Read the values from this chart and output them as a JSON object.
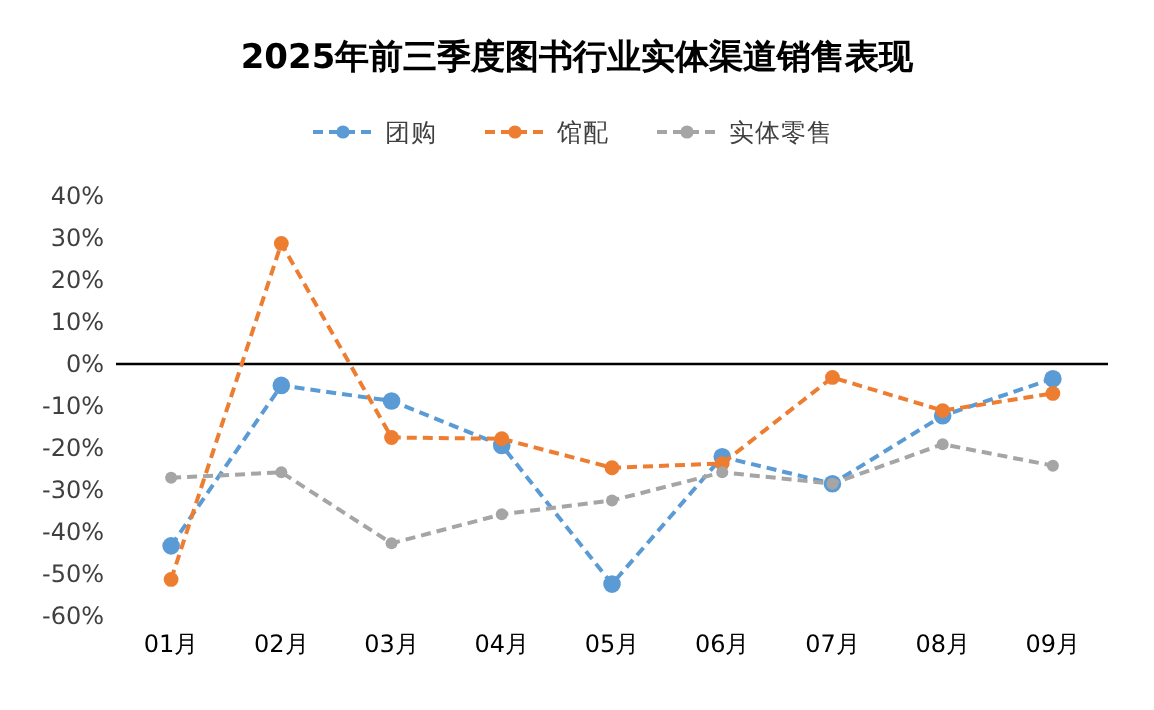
{
  "chart_data": {
    "type": "line",
    "title": "2025年前三季度图书行业实体渠道销售表现",
    "categories": [
      "01月",
      "02月",
      "03月",
      "04月",
      "05月",
      "06月",
      "07月",
      "08月",
      "09月"
    ],
    "series": [
      {
        "name": "团购",
        "color": "#5b9bd5",
        "values": [
          -43.3,
          -5.1,
          -8.8,
          -19.4,
          -52.4,
          -22.1,
          -28.5,
          -12.3,
          -3.5
        ]
      },
      {
        "name": "馆配",
        "color": "#ed7d31",
        "values": [
          -51.3,
          28.7,
          -17.5,
          -17.8,
          -24.7,
          -23.7,
          -3.2,
          -11.1,
          -7.0
        ]
      },
      {
        "name": "实体零售",
        "color": "#a5a5a5",
        "values": [
          -27.1,
          -25.8,
          -42.7,
          -35.8,
          -32.5,
          -25.8,
          -28.5,
          -19.1,
          -24.2
        ]
      }
    ],
    "ylim": [
      -60,
      40
    ],
    "yticks": [
      {
        "value": 40,
        "label": "40%"
      },
      {
        "value": 30,
        "label": "30%"
      },
      {
        "value": 20,
        "label": "20%"
      },
      {
        "value": 10,
        "label": "10%"
      },
      {
        "value": 0,
        "label": "0%"
      },
      {
        "value": -10,
        "label": "-10%"
      },
      {
        "value": -20,
        "label": "-20%"
      },
      {
        "value": -30,
        "label": "-30%"
      },
      {
        "value": -40,
        "label": "-40%"
      },
      {
        "value": -50,
        "label": "-50%"
      },
      {
        "value": -60,
        "label": "-60%"
      }
    ],
    "ref_lines": [
      {
        "axis": "y",
        "value": 0,
        "color": "#000000"
      }
    ],
    "grid": false,
    "legend": "top",
    "marker": "circle",
    "line_style": "dashed"
  }
}
